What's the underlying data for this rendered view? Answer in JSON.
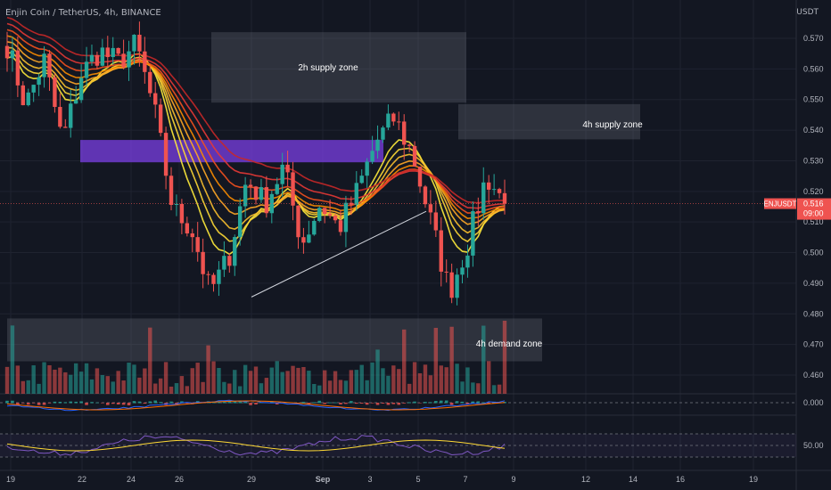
{
  "header": {
    "symbol": "Enjin Coin / TetherUS, 4h, BINANCE",
    "currency": "USDT"
  },
  "price_badge": {
    "ticker": "ENJUSDT",
    "price": "0.516",
    "countdown": "09:00"
  },
  "zones": [
    {
      "label": "2h supply zone",
      "top": 0.572,
      "bottom": 0.549
    },
    {
      "label": "4h supply zone",
      "top": 0.5485,
      "bottom": 0.537
    },
    {
      "label": "4h demand zone",
      "top": 0.4785,
      "bottom": 0.4645
    }
  ],
  "purple_zone": {
    "top": 0.5368,
    "bottom": 0.5295
  },
  "colors": {
    "bull": "#26a69a",
    "bear": "#ef5350",
    "zone": "#5d606b",
    "purple": "#7b3fe4",
    "background": "#131722",
    "ribbon_fast": "#ffeb3b",
    "ribbon_slow": "#d32f2f"
  },
  "chart_data": {
    "type": "candlestick",
    "ylim": [
      0.455,
      0.578
    ],
    "y_ticks": [
      "0.570",
      "0.560",
      "0.550",
      "0.540",
      "0.530",
      "0.520",
      "0.510",
      "0.500",
      "0.490",
      "0.480",
      "0.470",
      "0.460"
    ],
    "x_ticks": [
      "19",
      "22",
      "24",
      "26",
      "29",
      "Sep",
      "3",
      "5",
      "7",
      "9",
      "12",
      "14",
      "16",
      "19"
    ],
    "macd_ticks": [
      "0.000"
    ],
    "rsi_ticks": [
      "50.00"
    ],
    "anchors": [
      [
        "19",
        0.568
      ],
      [
        "20",
        0.548
      ],
      [
        "21",
        0.563
      ],
      [
        "22",
        0.536
      ],
      [
        "23",
        0.558
      ],
      [
        "24",
        0.566
      ],
      [
        "25",
        0.562
      ],
      [
        "26",
        0.568
      ],
      [
        "26b",
        0.546
      ],
      [
        "27",
        0.514
      ],
      [
        "28",
        0.508
      ],
      [
        "29",
        0.487
      ],
      [
        "29b",
        0.498
      ],
      [
        "30",
        0.524
      ],
      [
        "31",
        0.516
      ],
      [
        "Sep",
        0.528
      ],
      [
        "2",
        0.503
      ],
      [
        "3",
        0.516
      ],
      [
        "3b",
        0.508
      ],
      [
        "4",
        0.52
      ],
      [
        "5",
        0.536
      ],
      [
        "6",
        0.544
      ],
      [
        "6b",
        0.532
      ],
      [
        "7",
        0.51
      ],
      [
        "7b",
        0.487
      ],
      [
        "8",
        0.503
      ],
      [
        "8b",
        0.525
      ],
      [
        "9",
        0.516
      ]
    ],
    "trendline": [
      [
        0.4855,
        0.5135
      ]
    ],
    "last_price": 0.516
  }
}
